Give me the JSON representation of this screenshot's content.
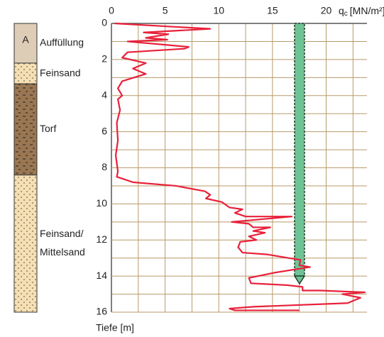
{
  "chart_data": {
    "type": "line",
    "x_label": {
      "symbol": "q",
      "subscript": "c",
      "unit": "[MN/m²]"
    },
    "y_label": "Tiefe [m]",
    "xlim": [
      0,
      23.8
    ],
    "ylim": [
      0,
      16
    ],
    "xticks": [
      0,
      5,
      10,
      15,
      20
    ],
    "yticks": [
      0,
      2,
      4,
      6,
      8,
      10,
      12,
      14,
      16
    ],
    "xgrid": [
      2.5,
      7.5,
      12.5,
      17.5,
      22.5
    ],
    "ygrid": [
      1,
      3,
      5,
      7,
      9,
      11,
      13,
      15
    ],
    "grid": true,
    "series": [
      {
        "color": "#e8203a",
        "x": [
          0.3,
          9.2,
          3,
          5.3,
          3.2,
          5.2,
          1.5,
          7.2,
          6.8,
          1.5,
          1,
          3.2,
          2,
          3.2,
          1,
          0.6,
          1,
          0.6,
          0.8,
          0.5,
          0.6,
          0.4,
          0.6,
          0.5,
          2,
          6,
          8.7,
          9.2,
          8.8,
          10.3,
          11,
          12.2,
          11.5,
          12.5,
          16.8,
          11.2,
          12.8,
          13.2,
          14.8,
          13.2,
          14.3,
          12.8,
          13.5,
          12,
          11.8,
          12.2,
          14.5,
          16.5,
          17.6,
          17.5,
          18.5,
          15.3,
          12.8,
          13,
          16.3,
          17.8,
          17.8,
          19.5,
          23.6,
          21.5,
          23.2,
          22,
          13.2,
          11,
          11.5,
          17.5
        ],
        "values": [
          0,
          0.3,
          0.5,
          0.6,
          0.8,
          0.9,
          1.0,
          1.3,
          1.4,
          1.6,
          1.9,
          2.2,
          2.5,
          2.8,
          3.2,
          3.6,
          4,
          4.2,
          4.8,
          5.5,
          6.5,
          7.3,
          8.2,
          8.5,
          8.8,
          9.0,
          9.3,
          9.5,
          9.7,
          9.9,
          10.2,
          10.3,
          10.5,
          10.7,
          10.7,
          11.0,
          11.1,
          11.3,
          11.3,
          11.5,
          11.6,
          11.8,
          12.0,
          12.1,
          12.4,
          12.7,
          12.8,
          13.0,
          13.1,
          13.4,
          13.5,
          13.8,
          14.1,
          14.4,
          14.5,
          14.6,
          14.8,
          14.8,
          14.9,
          15.0,
          15.2,
          15.5,
          15.7,
          15.8,
          15.9,
          15.9
        ]
      }
    ],
    "layers": [
      {
        "symbol": "A",
        "label": [
          "Auffüllung"
        ],
        "top": 0,
        "bottom": 2.2,
        "fill": "#ddccb6"
      },
      {
        "label": [
          "Feinsand"
        ],
        "top": 2.2,
        "bottom": 3.35,
        "fill": "url(#sand)"
      },
      {
        "label": [
          "Torf"
        ],
        "top": 3.35,
        "bottom": 8.4,
        "fill": "url(#peat)"
      },
      {
        "label": [
          "Feinsand/",
          "Mittelsand"
        ],
        "top": 8.4,
        "bottom": 16,
        "fill": "url(#sand)"
      }
    ]
  }
}
